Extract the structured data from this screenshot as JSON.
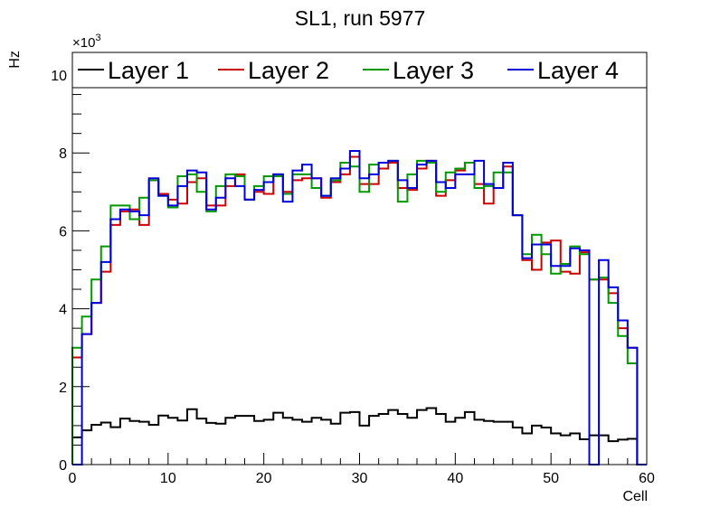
{
  "chart_data": {
    "type": "line",
    "title": "SL1, run 5977",
    "xlabel": "Cell",
    "ylabel": "Hz",
    "y_multiplier_label": "×10",
    "y_multiplier_exp": "3",
    "xlim": [
      0,
      60
    ],
    "ylim": [
      0,
      10500
    ],
    "x_ticks": [
      0,
      10,
      20,
      30,
      40,
      50,
      60
    ],
    "y_ticks": [
      0,
      2,
      4,
      6,
      8,
      10
    ],
    "grid": false,
    "legend_placement": "top",
    "series": [
      {
        "name": "Layer 1",
        "color": "#000000",
        "values": [
          700,
          880,
          1020,
          1080,
          960,
          1180,
          1120,
          1100,
          1020,
          1260,
          1200,
          1130,
          1420,
          1180,
          1070,
          1050,
          1200,
          1250,
          1250,
          1120,
          1150,
          1330,
          1200,
          1150,
          1100,
          1200,
          1150,
          1050,
          1330,
          1350,
          1000,
          1250,
          1300,
          1400,
          1300,
          1200,
          1400,
          1450,
          1300,
          1100,
          1200,
          1350,
          1150,
          1120,
          1100,
          1100,
          950,
          800,
          1000,
          950,
          800,
          750,
          800,
          650,
          750,
          750,
          600,
          640,
          660,
          0
        ]
      },
      {
        "name": "Layer 2",
        "color": "#cc0000",
        "values": [
          2750,
          3350,
          4150,
          4950,
          6150,
          6500,
          6550,
          6150,
          7300,
          6950,
          6800,
          6700,
          7250,
          7350,
          6650,
          6650,
          7150,
          7450,
          6800,
          7000,
          6950,
          7450,
          7000,
          7300,
          7350,
          7350,
          6850,
          7250,
          7450,
          7900,
          7200,
          7200,
          7600,
          7750,
          7100,
          7050,
          7600,
          7800,
          6900,
          7300,
          7550,
          7750,
          7200,
          6700,
          7100,
          7650,
          6400,
          5250,
          5000,
          5700,
          5750,
          4950,
          4900,
          5450,
          4750,
          4750,
          4400,
          3500,
          3000,
          0
        ]
      },
      {
        "name": "Layer 3",
        "color": "#009900",
        "values": [
          3000,
          3800,
          4750,
          5600,
          6650,
          6650,
          6300,
          6850,
          7300,
          6900,
          6600,
          7400,
          7450,
          7000,
          6500,
          7150,
          7450,
          7400,
          6800,
          7150,
          7400,
          7400,
          6950,
          7450,
          7450,
          7100,
          6900,
          7300,
          7750,
          7650,
          7000,
          7700,
          7750,
          7800,
          6750,
          7450,
          7800,
          7750,
          7000,
          7500,
          7600,
          7750,
          7100,
          7150,
          7500,
          7500,
          6400,
          5400,
          5900,
          5400,
          4900,
          5150,
          5600,
          5400,
          4750,
          4800,
          4150,
          3300,
          2600,
          0
        ]
      },
      {
        "name": "Layer 4",
        "color": "#0000dd",
        "values": [
          0,
          3350,
          4150,
          5200,
          6300,
          6550,
          6500,
          6400,
          7350,
          6900,
          6650,
          7150,
          7550,
          7500,
          6550,
          6850,
          7350,
          7150,
          6800,
          7050,
          7250,
          7450,
          6750,
          7550,
          7700,
          7350,
          6900,
          7350,
          7600,
          8050,
          7350,
          7450,
          7750,
          7800,
          7300,
          7100,
          7700,
          7800,
          7250,
          7100,
          7450,
          7450,
          7800,
          7200,
          7100,
          7750,
          6400,
          5300,
          5650,
          5650,
          5100,
          5100,
          5550,
          5500,
          0,
          5250,
          4550,
          3700,
          3000,
          0
        ]
      }
    ]
  }
}
